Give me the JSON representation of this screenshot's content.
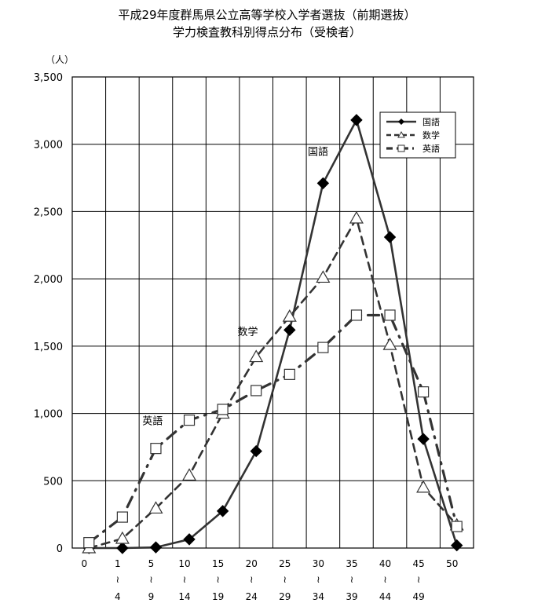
{
  "chart_data": {
    "type": "line",
    "title": "平成29年度群馬県公立高等学校入学者選抜（前期選抜）",
    "subtitle": "学力検査教科別得点分布（受検者）",
    "ylabel": "（人）",
    "xlabel": "",
    "ylim": [
      0,
      3500
    ],
    "yticks": [
      0,
      500,
      1000,
      1500,
      2000,
      2500,
      3000,
      3500
    ],
    "ytick_labels": [
      "0",
      "500",
      "1,000",
      "1,500",
      "2,000",
      "2,500",
      "3,000",
      "3,500"
    ],
    "categories": [
      {
        "top": "0",
        "tilde": "",
        "bottom": ""
      },
      {
        "top": "1",
        "tilde": "≀",
        "bottom": "4"
      },
      {
        "top": "5",
        "tilde": "≀",
        "bottom": "9"
      },
      {
        "top": "10",
        "tilde": "≀",
        "bottom": "14"
      },
      {
        "top": "15",
        "tilde": "≀",
        "bottom": "19"
      },
      {
        "top": "20",
        "tilde": "≀",
        "bottom": "24"
      },
      {
        "top": "25",
        "tilde": "≀",
        "bottom": "29"
      },
      {
        "top": "30",
        "tilde": "≀",
        "bottom": "34"
      },
      {
        "top": "35",
        "tilde": "≀",
        "bottom": "39"
      },
      {
        "top": "40",
        "tilde": "≀",
        "bottom": "44"
      },
      {
        "top": "45",
        "tilde": "≀",
        "bottom": "49"
      },
      {
        "top": "50",
        "tilde": "",
        "bottom": ""
      }
    ],
    "grid": true,
    "legend_position": "top-right",
    "series": [
      {
        "name": "国語",
        "marker": "diamond",
        "line": "solid",
        "values": [
          0,
          0,
          5,
          65,
          275,
          720,
          1620,
          2710,
          3180,
          2310,
          810,
          20
        ]
      },
      {
        "name": "数学",
        "marker": "triangle",
        "line": "dashed",
        "values": [
          0,
          70,
          295,
          540,
          1000,
          1420,
          1720,
          2010,
          2450,
          1510,
          450,
          170
        ]
      },
      {
        "name": "英語",
        "marker": "square",
        "line": "dashdot",
        "values": [
          40,
          230,
          740,
          950,
          1030,
          1170,
          1290,
          1490,
          1730,
          1730,
          1160,
          160
        ]
      }
    ],
    "annotations": [
      {
        "text": "国語",
        "x": 6.85,
        "y": 2920
      },
      {
        "text": "数学",
        "x": 4.75,
        "y": 1580
      },
      {
        "text": "英語",
        "x": 1.9,
        "y": 920
      }
    ]
  },
  "colors": {
    "line": "#333333",
    "grid": "#000000",
    "marker_fill_open": "#ffffff",
    "marker_fill_solid": "#000000"
  }
}
